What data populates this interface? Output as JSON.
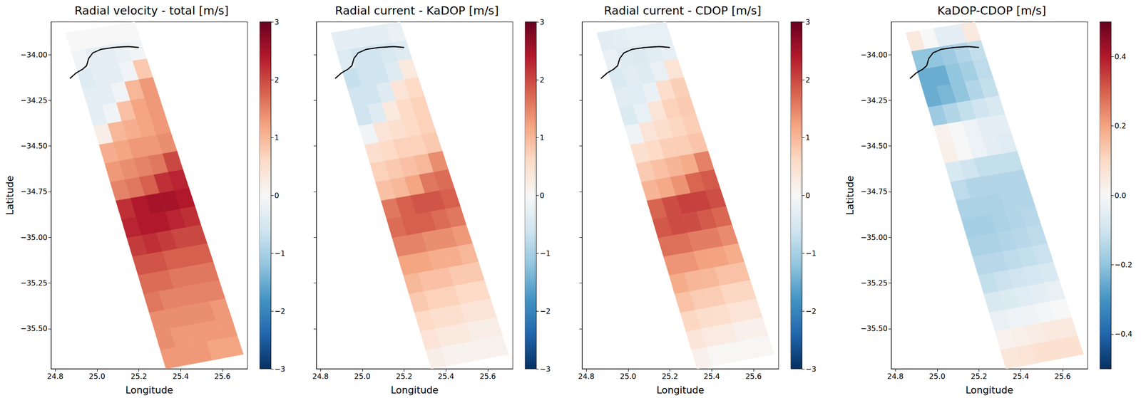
{
  "chart_data": [
    {
      "type": "heatmap",
      "title": "Radial velocity - total [m/s]",
      "xlabel": "Longitude",
      "ylabel": "Latitude",
      "xlim": [
        24.78,
        25.72
      ],
      "ylim": [
        -35.72,
        -33.82
      ],
      "xticks": [
        24.8,
        {
          "value": 25.0,
          "label": "25.0"
        },
        25.2,
        25.4,
        25.6
      ],
      "yticks": [
        {
          "value": -34,
          "label": "−34.00"
        },
        {
          "value": -34.25,
          "label": "−34.25"
        },
        {
          "value": -34.5,
          "label": "−34.50"
        },
        {
          "value": -34.75,
          "label": "−34.75"
        },
        {
          "value": -35,
          "label": "−35.00"
        },
        {
          "value": -35.25,
          "label": "−35.25"
        },
        {
          "value": -35.5,
          "label": "−35.50"
        }
      ],
      "grid": false,
      "color": "RdBu_r",
      "colorbar": {
        "range": [
          -3,
          3
        ],
        "ticks": [
          {
            "value": -3,
            "label": "−3"
          },
          {
            "value": -2,
            "label": "−2"
          },
          {
            "value": -1,
            "label": "−1"
          },
          0,
          1,
          2,
          3
        ]
      },
      "values": [
        [
          0,
          0,
          0,
          0,
          0
        ],
        [
          -0.1,
          -0.3,
          -0.3,
          -0.2,
          -0.1
        ],
        [
          -0.4,
          -0.3,
          -0.3,
          -0.1,
          0.8
        ],
        [
          -0.3,
          -0.3,
          -0.1,
          1.0,
          1.3
        ],
        [
          -0.3,
          -0.1,
          0.9,
          1.2,
          1.3
        ],
        [
          0.2,
          1.0,
          1.1,
          1.2,
          1.3
        ],
        [
          1.1,
          1.2,
          1.3,
          1.3,
          1.4
        ],
        [
          1.3,
          1.4,
          1.5,
          1.6,
          2.0
        ],
        [
          1.5,
          1.6,
          1.8,
          2.2,
          2.3
        ],
        [
          2.2,
          2.4,
          2.5,
          2.5,
          2.4
        ],
        [
          2.3,
          2.4,
          2.4,
          2.3,
          2.2
        ],
        [
          2.1,
          2.2,
          2.1,
          2.0,
          2.0
        ],
        [
          1.9,
          1.9,
          1.8,
          1.8,
          1.8
        ],
        [
          1.7,
          1.7,
          1.6,
          1.6,
          1.6
        ],
        [
          1.6,
          1.5,
          1.5,
          1.5,
          1.5
        ],
        [
          1.4,
          1.4,
          1.4,
          1.4,
          1.3
        ],
        [
          1.4,
          1.3,
          1.3,
          1.3,
          1.3
        ],
        [
          1.3,
          1.3,
          1.3,
          1.2,
          1.2
        ]
      ]
    },
    {
      "type": "heatmap",
      "title": "Radial current - KaDOP [m/s]",
      "xlabel": "Longitude",
      "xlim": [
        24.78,
        25.72
      ],
      "ylim": [
        -35.72,
        -33.82
      ],
      "xticks": [
        24.8,
        {
          "value": 25.0,
          "label": "25.0"
        },
        25.2,
        25.4,
        25.6
      ],
      "yticks": [
        {
          "value": -34,
          "label": "−34.00"
        },
        {
          "value": -34.25,
          "label": "−34.25"
        },
        {
          "value": -34.5,
          "label": "−34.50"
        },
        {
          "value": -34.75,
          "label": "−34.75"
        },
        {
          "value": -35,
          "label": "−35.00"
        },
        {
          "value": -35.25,
          "label": "−35.25"
        },
        {
          "value": -35.5,
          "label": "−35.50"
        }
      ],
      "tick_labels": "x",
      "grid": false,
      "color": "RdBu_r",
      "colorbar": {
        "range": [
          -3,
          3
        ],
        "ticks": [
          {
            "value": -3,
            "label": "−3"
          },
          {
            "value": -2,
            "label": "−2"
          },
          {
            "value": -1,
            "label": "−1"
          },
          0,
          1,
          2,
          3
        ]
      },
      "values": [
        [
          -0.3,
          -0.3,
          -0.3,
          -0.3,
          -0.2
        ],
        [
          -0.4,
          -0.6,
          -0.6,
          -0.5,
          -0.4
        ],
        [
          -0.7,
          -0.6,
          -0.6,
          -0.4,
          0.3
        ],
        [
          -0.6,
          -0.6,
          -0.4,
          0.4,
          0.6
        ],
        [
          -0.6,
          -0.4,
          0.3,
          0.6,
          0.7
        ],
        [
          -0.1,
          0.4,
          0.5,
          0.6,
          0.7
        ],
        [
          0.5,
          0.6,
          0.7,
          0.7,
          0.8
        ],
        [
          0.7,
          0.8,
          0.9,
          1.0,
          1.4
        ],
        [
          0.9,
          1.0,
          1.2,
          1.6,
          1.7
        ],
        [
          1.6,
          1.8,
          1.9,
          1.9,
          1.8
        ],
        [
          1.7,
          1.8,
          1.8,
          1.7,
          1.6
        ],
        [
          1.5,
          1.5,
          1.4,
          1.4,
          1.3
        ],
        [
          1.2,
          1.2,
          1.1,
          1.1,
          1.0
        ],
        [
          1.0,
          0.9,
          0.9,
          0.8,
          0.8
        ],
        [
          0.8,
          0.7,
          0.7,
          0.6,
          0.6
        ],
        [
          0.6,
          0.5,
          0.5,
          0.4,
          0.4
        ],
        [
          0.4,
          0.3,
          0.3,
          0.2,
          0.2
        ],
        [
          0.2,
          0.1,
          0.1,
          0.1,
          0.1
        ]
      ]
    },
    {
      "type": "heatmap",
      "title": "Radial current - CDOP [m/s]",
      "xlabel": "Longitude",
      "xlim": [
        24.78,
        25.72
      ],
      "ylim": [
        -35.72,
        -33.82
      ],
      "xticks": [
        24.8,
        {
          "value": 25.0,
          "label": "25.0"
        },
        25.2,
        25.4,
        25.6
      ],
      "yticks": [
        {
          "value": -34,
          "label": "−34.00"
        },
        {
          "value": -34.25,
          "label": "−34.25"
        },
        {
          "value": -34.5,
          "label": "−34.50"
        },
        {
          "value": -34.75,
          "label": "−34.75"
        },
        {
          "value": -35,
          "label": "−35.00"
        },
        {
          "value": -35.25,
          "label": "−35.25"
        },
        {
          "value": -35.5,
          "label": "−35.50"
        }
      ],
      "tick_labels": "x",
      "grid": false,
      "color": "RdBu_r",
      "colorbar": {
        "range": [
          -3,
          3
        ],
        "ticks": [
          {
            "value": -3,
            "label": "−3"
          },
          {
            "value": -2,
            "label": "−2"
          },
          {
            "value": -1,
            "label": "−1"
          },
          0,
          1,
          2,
          3
        ]
      },
      "values": [
        [
          -0.35,
          -0.3,
          -0.25,
          -0.25,
          -0.25
        ],
        [
          -0.2,
          -0.4,
          -0.42,
          -0.35,
          -0.28
        ],
        [
          -0.45,
          -0.35,
          -0.4,
          -0.23,
          0.43
        ],
        [
          -0.35,
          -0.37,
          -0.2,
          0.55,
          0.72
        ],
        [
          -0.42,
          -0.25,
          0.42,
          0.7,
          0.78
        ],
        [
          -0.12,
          0.4,
          0.53,
          0.65,
          0.75
        ],
        [
          0.47,
          0.6,
          0.73,
          0.75,
          0.86
        ],
        [
          0.78,
          0.9,
          1.02,
          1.12,
          1.52
        ],
        [
          1.03,
          1.15,
          1.35,
          1.75,
          1.85
        ],
        [
          1.76,
          1.96,
          2.06,
          2.05,
          1.95
        ],
        [
          1.87,
          1.97,
          1.96,
          1.85,
          1.74
        ],
        [
          1.66,
          1.66,
          1.55,
          1.54,
          1.43
        ],
        [
          1.34,
          1.34,
          1.23,
          1.22,
          1.11
        ],
        [
          1.12,
          1.01,
          1.0,
          0.89,
          0.88
        ],
        [
          0.88,
          0.77,
          0.76,
          0.65,
          0.64
        ],
        [
          0.64,
          0.53,
          0.52,
          0.41,
          0.4
        ],
        [
          0.38,
          0.27,
          0.26,
          0.15,
          0.15
        ],
        [
          0.14,
          0.03,
          0.02,
          0.02,
          0.02
        ]
      ]
    },
    {
      "type": "heatmap",
      "title": "KaDOP-CDOP [m/s]",
      "xlabel": "Longitude",
      "ylabel": "Latitude",
      "xlim": [
        24.78,
        25.72
      ],
      "ylim": [
        -35.72,
        -33.82
      ],
      "xticks": [
        24.8,
        {
          "value": 25.0,
          "label": "25.0"
        },
        25.2,
        25.4,
        25.6
      ],
      "yticks": [
        {
          "value": -34,
          "label": "−34.00"
        },
        {
          "value": -34.25,
          "label": "−34.25"
        },
        {
          "value": -34.5,
          "label": "−34.50"
        },
        {
          "value": -34.75,
          "label": "−34.75"
        },
        {
          "value": -35,
          "label": "−35.00"
        },
        {
          "value": -35.25,
          "label": "−35.25"
        },
        {
          "value": -35.5,
          "label": "−35.50"
        }
      ],
      "grid": false,
      "color": "RdBu_r",
      "colorbar": {
        "range": [
          -0.5,
          0.5
        ],
        "ticks": [
          {
            "value": -0.4,
            "label": "−0.4"
          },
          {
            "value": -0.2,
            "label": "−0.2"
          },
          {
            "value": 0,
            "label": "0.0"
          },
          0.2,
          0.4
        ]
      },
      "values": [
        [
          0.05,
          0.0,
          -0.05,
          -0.05,
          0.05
        ],
        [
          -0.2,
          -0.2,
          -0.18,
          -0.15,
          -0.12
        ],
        [
          -0.25,
          -0.25,
          -0.2,
          -0.17,
          -0.13
        ],
        [
          -0.25,
          -0.23,
          -0.2,
          -0.15,
          -0.12
        ],
        [
          -0.18,
          -0.15,
          -0.12,
          -0.1,
          -0.08
        ],
        [
          0.02,
          0.0,
          -0.03,
          -0.05,
          -0.05
        ],
        [
          0.03,
          0.0,
          -0.03,
          -0.05,
          -0.06
        ],
        [
          -0.08,
          -0.1,
          -0.12,
          -0.12,
          -0.12
        ],
        [
          -0.13,
          -0.15,
          -0.15,
          -0.15,
          -0.15
        ],
        [
          -0.16,
          -0.16,
          -0.16,
          -0.15,
          -0.15
        ],
        [
          -0.17,
          -0.17,
          -0.16,
          -0.15,
          -0.14
        ],
        [
          -0.16,
          -0.16,
          -0.15,
          -0.14,
          -0.13
        ],
        [
          -0.14,
          -0.14,
          -0.13,
          -0.12,
          -0.11
        ],
        [
          -0.12,
          -0.11,
          -0.1,
          -0.09,
          -0.08
        ],
        [
          -0.08,
          -0.07,
          -0.06,
          -0.05,
          -0.04
        ],
        [
          -0.04,
          -0.03,
          -0.02,
          -0.01,
          0.0
        ],
        [
          0.02,
          0.03,
          0.04,
          0.05,
          0.05
        ],
        [
          0.06,
          0.07,
          0.08,
          0.08,
          0.08
        ]
      ]
    }
  ],
  "swath": {
    "lon": [
      [
        24.85,
        24.916,
        24.982,
        25.048,
        25.114,
        25.18
      ],
      [
        24.877,
        24.943,
        25.01,
        25.076,
        25.143,
        25.209
      ],
      [
        24.903,
        24.97,
        25.037,
        25.103,
        25.17,
        25.237
      ],
      [
        24.93,
        24.997,
        25.065,
        25.132,
        25.2,
        25.267
      ],
      [
        24.957,
        25.025,
        25.093,
        25.16,
        25.228,
        25.296
      ],
      [
        24.983,
        25.051,
        25.119,
        25.188,
        25.256,
        25.324
      ],
      [
        25.01,
        25.079,
        25.147,
        25.216,
        25.284,
        25.353
      ],
      [
        25.037,
        25.106,
        25.175,
        25.245,
        25.314,
        25.383
      ],
      [
        25.063,
        25.133,
        25.202,
        25.272,
        25.341,
        25.411
      ],
      [
        25.09,
        25.16,
        25.23,
        25.3,
        25.37,
        25.44
      ],
      [
        25.117,
        25.187,
        25.258,
        25.328,
        25.398,
        25.469
      ],
      [
        25.143,
        25.214,
        25.285,
        25.355,
        25.426,
        25.497
      ],
      [
        25.17,
        25.241,
        25.313,
        25.384,
        25.456,
        25.527
      ],
      [
        25.197,
        25.269,
        25.341,
        25.412,
        25.484,
        25.556
      ],
      [
        25.223,
        25.295,
        25.367,
        25.44,
        25.512,
        25.584
      ],
      [
        25.25,
        25.323,
        25.395,
        25.468,
        25.54,
        25.613
      ],
      [
        25.277,
        25.35,
        25.423,
        25.497,
        25.57,
        25.643
      ],
      [
        25.303,
        25.377,
        25.45,
        25.524,
        25.597,
        25.671
      ],
      [
        25.33,
        25.404,
        25.478,
        25.552,
        25.626,
        25.7
      ]
    ],
    "lat": [
      [
        -33.88,
        -33.868,
        -33.856,
        -33.844,
        -33.832,
        -33.82
      ],
      [
        -33.982,
        -33.97,
        -33.958,
        -33.945,
        -33.933,
        -33.921
      ],
      [
        -34.084,
        -34.072,
        -34.059,
        -34.047,
        -34.034,
        -34.022
      ],
      [
        -34.187,
        -34.174,
        -34.162,
        -34.149,
        -34.136,
        -34.124
      ],
      [
        -34.289,
        -34.276,
        -34.263,
        -34.251,
        -34.238,
        -34.225
      ],
      [
        -34.391,
        -34.378,
        -34.365,
        -34.351,
        -34.338,
        -34.325
      ],
      [
        -34.493,
        -34.48,
        -34.466,
        -34.453,
        -34.439,
        -34.426
      ],
      [
        -34.596,
        -34.582,
        -34.569,
        -34.555,
        -34.542,
        -34.528
      ],
      [
        -34.698,
        -34.684,
        -34.67,
        -34.657,
        -34.643,
        -34.629
      ],
      [
        -34.8,
        -34.786,
        -34.772,
        -34.758,
        -34.744,
        -34.73
      ],
      [
        -34.902,
        -34.888,
        -34.874,
        -34.859,
        -34.845,
        -34.831
      ],
      [
        -35.004,
        -34.99,
        -34.975,
        -34.961,
        -34.946,
        -34.932
      ],
      [
        -35.107,
        -35.092,
        -35.078,
        -35.063,
        -35.049,
        -35.034
      ],
      [
        -35.209,
        -35.194,
        -35.179,
        -35.165,
        -35.15,
        -35.135
      ],
      [
        -35.311,
        -35.296,
        -35.281,
        -35.265,
        -35.25,
        -35.235
      ],
      [
        -35.413,
        -35.398,
        -35.382,
        -35.367,
        -35.351,
        -35.336
      ],
      [
        -35.516,
        -35.5,
        -35.485,
        -35.469,
        -35.454,
        -35.438
      ],
      [
        -35.618,
        -35.602,
        -35.586,
        -35.571,
        -35.555,
        -35.539
      ],
      [
        -35.72,
        -35.704,
        -35.688,
        -35.672,
        -35.656,
        -35.64
      ]
    ]
  },
  "coastline": {
    "lon": [
      24.87,
      24.9,
      24.93,
      24.95,
      24.96,
      24.98,
      25.02,
      25.08,
      25.15,
      25.2
    ],
    "lat": [
      -34.13,
      -34.1,
      -34.08,
      -34.06,
      -34.02,
      -33.99,
      -33.97,
      -33.96,
      -33.955,
      -33.96
    ]
  }
}
